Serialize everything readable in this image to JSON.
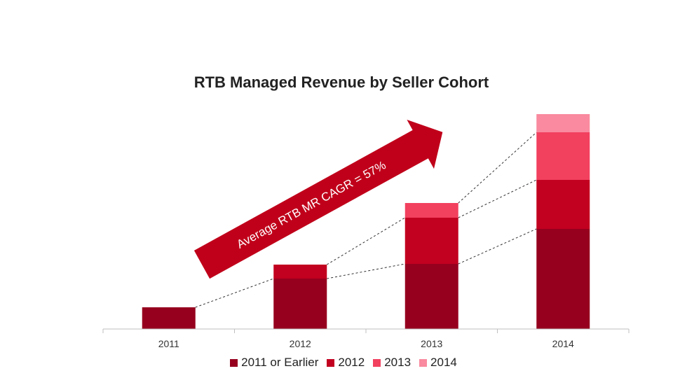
{
  "chart_data": {
    "type": "bar",
    "stacked": true,
    "title": "RTB Managed Revenue by Seller Cohort",
    "categories": [
      "2011",
      "2012",
      "2013",
      "2014"
    ],
    "series": [
      {
        "name": "2011 or Earlier",
        "color": "#96001E",
        "values": [
          31,
          72,
          93,
          143
        ]
      },
      {
        "name": "2012",
        "color": "#C2001F",
        "values": [
          null,
          20,
          66,
          70
        ]
      },
      {
        "name": "2013",
        "color": "#F2405F",
        "values": [
          null,
          null,
          21,
          68
        ]
      },
      {
        "name": "2014",
        "color": "#F98A9F",
        "values": [
          null,
          null,
          null,
          26
        ]
      }
    ],
    "ylim": [
      0,
      310
    ],
    "yaxis_visible": false,
    "connector_lines": "dashed",
    "annotation": {
      "text": "Average  RTB MR CAGR = 57%",
      "style": "arrow",
      "color": "#C0001A"
    },
    "legend_position": "bottom"
  }
}
